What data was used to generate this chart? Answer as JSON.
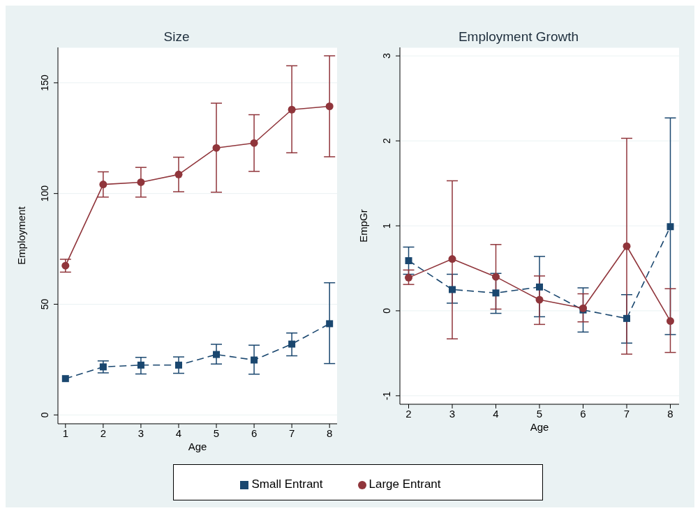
{
  "chart_data": [
    {
      "type": "line",
      "title": "Size",
      "xlabel": "Age",
      "ylabel": "Employment",
      "x": [
        1,
        2,
        3,
        4,
        5,
        6,
        7,
        8
      ],
      "xlim": [
        0.8,
        8.2
      ],
      "xticks": [
        1,
        2,
        3,
        4,
        5,
        6,
        7,
        8
      ],
      "ylim": [
        -4,
        166
      ],
      "yticks": [
        0,
        50,
        100,
        150
      ],
      "grid": "y",
      "legend": "bottom",
      "series": [
        {
          "name": "Small Entrant",
          "color": "#1a476f",
          "marker": "square",
          "line_style": "dashed",
          "values": [
            16.4,
            21.7,
            22.5,
            22.5,
            27.3,
            24.8,
            32.0,
            41.2
          ],
          "errors": [
            null,
            [
              19.0,
              24.4
            ],
            [
              18.5,
              26.0
            ],
            [
              18.8,
              26.2
            ],
            [
              23.0,
              31.9
            ],
            [
              18.4,
              31.5
            ],
            [
              26.7,
              37.0
            ],
            [
              23.2,
              59.7
            ]
          ]
        },
        {
          "name": "Large Entrant",
          "color": "#90353b",
          "marker": "circle",
          "line_style": "solid",
          "values": [
            67.4,
            104.1,
            105.1,
            108.6,
            120.6,
            122.8,
            137.9,
            139.4
          ],
          "errors": [
            [
              64.5,
              70.3
            ],
            [
              98.4,
              109.8
            ],
            [
              98.4,
              111.8
            ],
            [
              100.8,
              116.4
            ],
            [
              100.6,
              140.8
            ],
            [
              110.0,
              135.6
            ],
            [
              118.4,
              157.7
            ],
            [
              116.6,
              162.2
            ]
          ]
        }
      ]
    },
    {
      "type": "line",
      "title": "Employment Growth",
      "xlabel": "Age",
      "ylabel": "EmpGr",
      "x": [
        2,
        3,
        4,
        5,
        6,
        7,
        8
      ],
      "xlim": [
        1.8,
        8.2
      ],
      "xticks": [
        2,
        3,
        4,
        5,
        6,
        7,
        8
      ],
      "ylim": [
        -1.1,
        3.1
      ],
      "yticks": [
        -1,
        0,
        1,
        2,
        3
      ],
      "grid": "y",
      "series": [
        {
          "color": "#1a476f",
          "marker": "square",
          "line_style": "dashed",
          "values": [
            0.59,
            0.25,
            0.21,
            0.28,
            0.01,
            -0.09,
            0.99
          ],
          "errors": [
            [
              0.43,
              0.75
            ],
            [
              0.09,
              0.43
            ],
            [
              -0.03,
              0.44
            ],
            [
              -0.07,
              0.64
            ],
            [
              -0.25,
              0.27
            ],
            [
              -0.38,
              0.19
            ],
            [
              -0.28,
              2.27
            ]
          ]
        },
        {
          "color": "#90353b",
          "marker": "circle",
          "line_style": "solid",
          "values": [
            0.39,
            0.61,
            0.4,
            0.13,
            0.03,
            0.76,
            -0.12
          ],
          "errors": [
            [
              0.31,
              0.48
            ],
            [
              -0.33,
              1.53
            ],
            [
              0.02,
              0.78
            ],
            [
              -0.16,
              0.41
            ],
            [
              -0.13,
              0.2
            ],
            [
              -0.51,
              2.03
            ],
            [
              -0.49,
              0.26
            ]
          ]
        }
      ]
    }
  ]
}
